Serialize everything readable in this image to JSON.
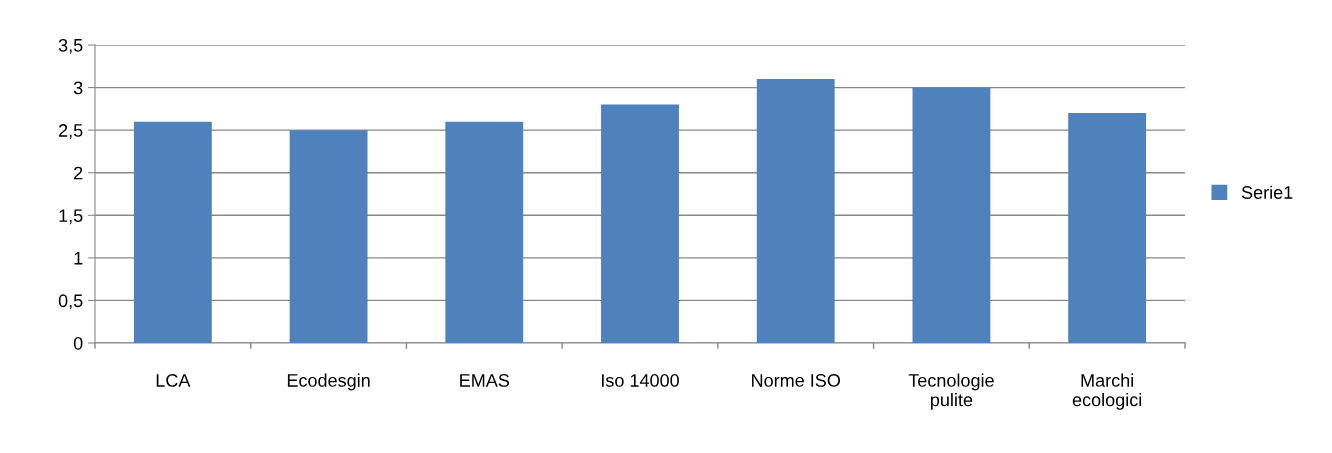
{
  "chart_data": {
    "type": "bar",
    "categories": [
      "LCA",
      "Ecodesgin",
      "EMAS",
      "Iso 14000",
      "Norme ISO",
      "Tecnologie\npulite",
      "Marchi\necologici"
    ],
    "series": [
      {
        "name": "Serie1",
        "color": "#4f81bd",
        "values": [
          2.6,
          2.5,
          2.6,
          2.8,
          3.1,
          3.0,
          2.7
        ]
      }
    ],
    "ylim": [
      0,
      3.5
    ],
    "yticks": [
      0,
      {
        "value": 0.5,
        "label": "0,5"
      },
      1,
      {
        "value": 1.5,
        "label": "1,5"
      },
      2,
      {
        "value": 2.5,
        "label": "2,5"
      },
      3,
      {
        "value": 3.5,
        "label": "3,5"
      }
    ],
    "grid": "y",
    "legend": "right"
  }
}
